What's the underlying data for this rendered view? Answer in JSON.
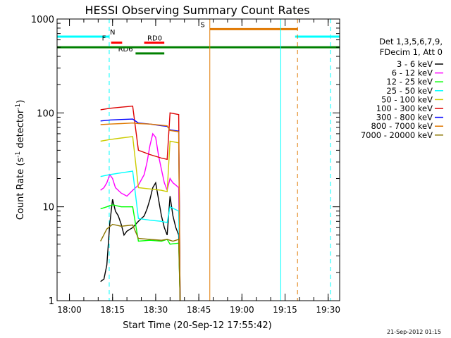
{
  "chart_data": {
    "type": "line",
    "title": "HESSI Observing Summary Count Rates",
    "xlabel": "Start Time (20-Sep-12 17:55:42)",
    "ylabel_main": "Count Rate (s",
    "ylabel_sup1": "-1",
    "ylabel_mid": " detector",
    "ylabel_sup2": "-1",
    "ylabel_end": ")",
    "yscale": "log",
    "ylim": [
      1,
      1000
    ],
    "xlim": [
      "17:55:42",
      "19:34:00"
    ],
    "x_ticks": [
      "18:00",
      "18:15",
      "18:30",
      "18:45",
      "19:00",
      "19:15",
      "19:30"
    ],
    "y_ticks": [
      "1",
      "10",
      "100",
      "1000"
    ],
    "footer_date": "21-Sep-2012 01:15",
    "legend": {
      "header1": "Det 1,3,5,6,7,9,",
      "header2": "FDecim 1, Att 0",
      "position": "right"
    },
    "series": [
      {
        "name": "3 - 6 keV",
        "color": "#000000",
        "points": [
          [
            "18:10:50",
            1.6
          ],
          [
            "18:12",
            1.7
          ],
          [
            "18:13",
            2.4
          ],
          [
            "18:14",
            6.5
          ],
          [
            "18:15",
            12
          ],
          [
            "18:16",
            9
          ],
          [
            "18:17",
            8
          ],
          [
            "18:18",
            6.5
          ],
          [
            "18:19",
            5
          ],
          [
            "18:20",
            5.5
          ],
          [
            "18:22",
            6.0
          ],
          [
            "18:24",
            7.0
          ],
          [
            "18:26",
            8.0
          ],
          [
            "18:27",
            9.5
          ],
          [
            "18:28",
            12
          ],
          [
            "18:29",
            16
          ],
          [
            "18:30",
            18
          ],
          [
            "18:31",
            12
          ],
          [
            "18:32",
            8
          ],
          [
            "18:33",
            6
          ],
          [
            "18:34",
            5
          ],
          [
            "18:35",
            13
          ],
          [
            "18:36",
            8
          ],
          [
            "18:37",
            6
          ],
          [
            "18:38",
            5
          ],
          [
            "18:38:30",
            1
          ]
        ]
      },
      {
        "name": "6 - 12 keV",
        "color": "#ff00ff",
        "points": [
          [
            "18:10:50",
            15
          ],
          [
            "18:12",
            16
          ],
          [
            "18:13",
            18
          ],
          [
            "18:14",
            22
          ],
          [
            "18:15",
            20
          ],
          [
            "18:16",
            16
          ],
          [
            "18:18",
            14
          ],
          [
            "18:20",
            13
          ],
          [
            "18:22",
            15
          ],
          [
            "18:24",
            17
          ],
          [
            "18:26",
            22
          ],
          [
            "18:27",
            30
          ],
          [
            "18:28",
            45
          ],
          [
            "18:29",
            60
          ],
          [
            "18:30",
            55
          ],
          [
            "18:31",
            35
          ],
          [
            "18:32",
            25
          ],
          [
            "18:33",
            18
          ],
          [
            "18:34",
            15
          ],
          [
            "18:35",
            20
          ],
          [
            "18:36",
            18
          ],
          [
            "18:37",
            17
          ],
          [
            "18:38",
            16
          ],
          [
            "18:38:30",
            1
          ]
        ]
      },
      {
        "name": "12 - 25 keV",
        "color": "#00ff00",
        "points": [
          [
            "18:10:50",
            9.5
          ],
          [
            "18:13",
            10
          ],
          [
            "18:15",
            10.5
          ],
          [
            "18:18",
            10
          ],
          [
            "18:22",
            10
          ],
          [
            "18:24",
            4.3
          ],
          [
            "18:28",
            4.4
          ],
          [
            "18:32",
            4.3
          ],
          [
            "18:34",
            4.5
          ],
          [
            "18:35",
            4.0
          ],
          [
            "18:38",
            4.1
          ],
          [
            "18:38:30",
            1
          ]
        ]
      },
      {
        "name": "25 - 50 keV",
        "color": "#00ffff",
        "points": [
          [
            "18:10:50",
            21
          ],
          [
            "18:14",
            22
          ],
          [
            "18:18",
            23
          ],
          [
            "18:22",
            24
          ],
          [
            "18:24",
            7.5
          ],
          [
            "18:28",
            7.2
          ],
          [
            "18:32",
            7.0
          ],
          [
            "18:34",
            6.8
          ],
          [
            "18:35",
            10
          ],
          [
            "18:38",
            9
          ],
          [
            "18:38:30",
            1
          ]
        ]
      },
      {
        "name": "50 - 100 keV",
        "color": "#cccc00",
        "points": [
          [
            "18:10:50",
            50
          ],
          [
            "18:14",
            52
          ],
          [
            "18:18",
            54
          ],
          [
            "18:22",
            56
          ],
          [
            "18:24",
            16
          ],
          [
            "18:28",
            15.5
          ],
          [
            "18:32",
            15
          ],
          [
            "18:34",
            14.5
          ],
          [
            "18:35",
            50
          ],
          [
            "18:38",
            48
          ],
          [
            "18:38:30",
            1
          ]
        ]
      },
      {
        "name": "100 - 300 keV",
        "color": "#dd0000",
        "points": [
          [
            "18:10:50",
            108
          ],
          [
            "18:14",
            112
          ],
          [
            "18:18",
            115
          ],
          [
            "18:22",
            118
          ],
          [
            "18:24",
            40
          ],
          [
            "18:28",
            36
          ],
          [
            "18:32",
            33
          ],
          [
            "18:34",
            32
          ],
          [
            "18:35",
            100
          ],
          [
            "18:38",
            96
          ],
          [
            "18:38:30",
            1
          ]
        ]
      },
      {
        "name": "300 - 800 keV",
        "color": "#0000ff",
        "points": [
          [
            "18:10:50",
            82
          ],
          [
            "18:14",
            84
          ],
          [
            "18:18",
            85
          ],
          [
            "18:22",
            86
          ],
          [
            "18:24",
            78
          ],
          [
            "18:28",
            76
          ],
          [
            "18:32",
            73
          ],
          [
            "18:34",
            72
          ],
          [
            "18:35",
            66
          ],
          [
            "18:38",
            64
          ],
          [
            "18:38:30",
            1
          ]
        ]
      },
      {
        "name": "800 - 7000 keV",
        "color": "#e07800",
        "points": [
          [
            "18:10:50",
            75
          ],
          [
            "18:14",
            76
          ],
          [
            "18:18",
            77
          ],
          [
            "18:22",
            78
          ],
          [
            "18:24",
            77
          ],
          [
            "18:28",
            76
          ],
          [
            "18:32",
            74
          ],
          [
            "18:34",
            73
          ],
          [
            "18:35",
            65
          ],
          [
            "18:38",
            63
          ],
          [
            "18:38:30",
            1
          ]
        ]
      },
      {
        "name": "7000 - 20000 keV",
        "color": "#8b7500",
        "points": [
          [
            "18:10:50",
            4.3
          ],
          [
            "18:13",
            5.8
          ],
          [
            "18:15",
            6.5
          ],
          [
            "18:18",
            6.2
          ],
          [
            "18:22",
            6.4
          ],
          [
            "18:24",
            4.6
          ],
          [
            "18:28",
            4.5
          ],
          [
            "18:32",
            4.4
          ],
          [
            "18:34",
            4.5
          ],
          [
            "18:36",
            4.3
          ],
          [
            "18:38",
            4.5
          ],
          [
            "18:38:30",
            1
          ]
        ]
      }
    ],
    "flags": [
      {
        "label": "N",
        "color": "#00ffff",
        "y": 650,
        "segments": [
          [
            "17:55:42",
            "18:13:50"
          ],
          [
            "19:18:30",
            "19:34:00"
          ]
        ],
        "label_at": "18:15"
      },
      {
        "label": "F",
        "color": "#ff0000",
        "y": 560,
        "segments": [
          [
            "18:14:30",
            "18:18:20"
          ]
        ],
        "label_at": "18:12"
      },
      {
        "label": "RD0",
        "color": "#ff0000",
        "y": 560,
        "segments": [
          [
            "18:26",
            "18:33"
          ]
        ],
        "label_at": "18:29:40"
      },
      {
        "label": "RD6",
        "color": "#008000",
        "y": 430,
        "segments": [
          [
            "18:23",
            "18:33"
          ]
        ],
        "label_at": "18:19:30"
      },
      {
        "label": "",
        "color": "#008000",
        "y": 500,
        "segments": [
          [
            "17:55:42",
            "19:34:00"
          ]
        ],
        "label_at": ""
      },
      {
        "label": "S",
        "color": "#e07800",
        "y": 780,
        "segments": [
          [
            "18:48:50",
            "19:19:30"
          ]
        ],
        "label_at": "18:46:20"
      }
    ],
    "vlines": [
      {
        "x": "18:13:50",
        "color": "#00ffff",
        "style": "dashed"
      },
      {
        "x": "19:13:30",
        "color": "#00ffff",
        "style": "solid"
      },
      {
        "x": "19:30:50",
        "color": "#00ffff",
        "style": "dashed"
      },
      {
        "x": "18:48:50",
        "color": "#e07800",
        "style": "solid"
      },
      {
        "x": "19:19:20",
        "color": "#e07800",
        "style": "dashed"
      }
    ]
  }
}
